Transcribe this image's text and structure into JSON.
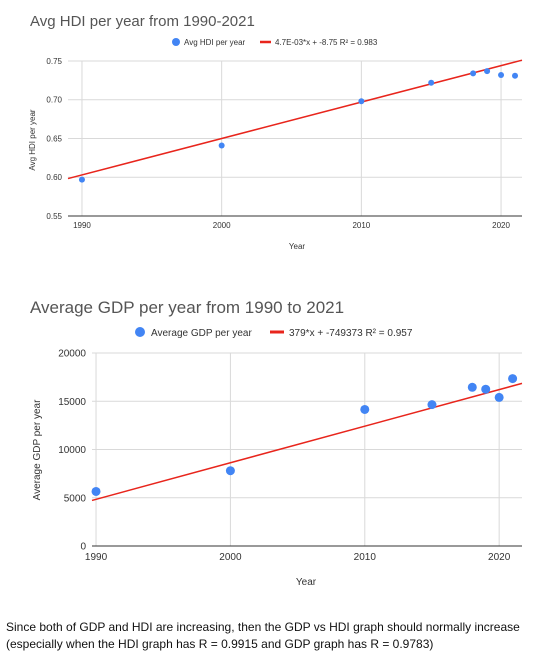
{
  "chart_data": [
    {
      "type": "scatter",
      "title": "Avg HDI per year from 1990-2021",
      "xlabel": "Year",
      "ylabel": "Avg HDI per year",
      "xlim": [
        1989,
        2021.5
      ],
      "ylim": [
        0.55,
        0.75
      ],
      "xticks": [
        1990,
        2000,
        2010,
        2020
      ],
      "yticks": [
        0.55,
        0.6,
        0.65,
        0.7,
        0.75
      ],
      "ytick_decimals": 2,
      "grid": true,
      "legend": "top-center",
      "point_color": "#4285f4",
      "trend_color": "#e8251c",
      "series": [
        {
          "name": "Avg HDI per year",
          "x": [
            1990,
            2000,
            2010,
            2015,
            2018,
            2019,
            2020,
            2021
          ],
          "y": [
            0.597,
            0.641,
            0.698,
            0.722,
            0.734,
            0.737,
            0.732,
            0.731
          ]
        }
      ],
      "trendline": {
        "label": "4.7E-03*x + -8.75 R² = 0.983",
        "slope": 0.0047,
        "intercept": -8.75
      }
    },
    {
      "type": "scatter",
      "title": "Average GDP per year from 1990 to 2021",
      "xlabel": "Year",
      "ylabel": "Average GDP per year",
      "xlim": [
        1989.7,
        2021.7
      ],
      "ylim": [
        0,
        20000
      ],
      "xticks": [
        1990,
        2000,
        2010,
        2020
      ],
      "yticks": [
        0,
        5000,
        10000,
        15000,
        20000
      ],
      "ytick_decimals": 0,
      "grid": true,
      "legend": "top-center",
      "point_color": "#4285f4",
      "trend_color": "#e8251c",
      "series": [
        {
          "name": "Average GDP per year",
          "x": [
            1990,
            2000,
            2010,
            2015,
            2018,
            2019,
            2020,
            2021
          ],
          "y": [
            5650,
            7800,
            14150,
            14650,
            16450,
            16250,
            15400,
            17350
          ]
        }
      ],
      "trendline": {
        "label": "379*x + -749373 R² = 0.957",
        "slope": 379,
        "intercept": -749373
      }
    }
  ],
  "note": {
    "line1": "Since both of GDP and HDI are increasing, then the GDP vs HDI graph should normally increase",
    "line2": "(especially when the HDI graph has R = 0.9915 and GDP graph has R = 0.9783)"
  }
}
